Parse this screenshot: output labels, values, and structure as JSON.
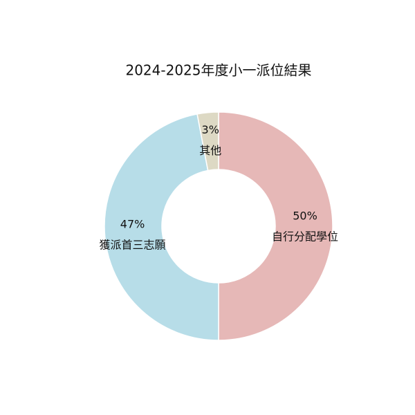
{
  "chart_data": {
    "type": "donut",
    "title": "2024-2025年度小一派位結果",
    "categories": [
      "自行分配學位",
      "獲派首三志願",
      "其他"
    ],
    "values": [
      50,
      47,
      3
    ],
    "value_labels": [
      "50%",
      "47%",
      "3%"
    ],
    "colors": [
      "#e6b8b7",
      "#b7dde8",
      "#ddd9c4"
    ]
  }
}
